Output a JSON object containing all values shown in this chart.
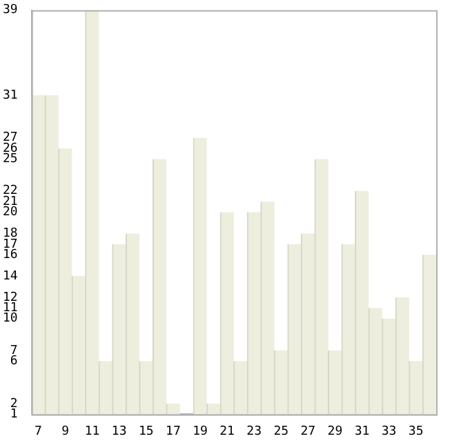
{
  "chart_data": {
    "type": "bar",
    "categories": [
      "7",
      null,
      "9",
      null,
      "11",
      null,
      "13",
      null,
      "15",
      null,
      "17",
      null,
      "19",
      null,
      "21",
      null,
      "23",
      null,
      "25",
      null,
      "27",
      null,
      "29",
      null,
      "31",
      null,
      "33",
      null,
      "35",
      null
    ],
    "values": [
      31,
      31,
      26,
      14,
      39,
      6,
      17,
      18,
      6,
      25,
      2,
      1,
      27,
      2,
      20,
      6,
      20,
      21,
      7,
      17,
      18,
      25,
      7,
      17,
      22,
      11,
      10,
      12,
      6,
      16
    ],
    "color": "#eeeedf",
    "ylim": [
      1,
      39
    ],
    "yticks": [
      1,
      2,
      6,
      7,
      10,
      11,
      12,
      14,
      16,
      17,
      18,
      20,
      21,
      22,
      25,
      26,
      27,
      31,
      39
    ],
    "grid": false,
    "legend": false
  }
}
